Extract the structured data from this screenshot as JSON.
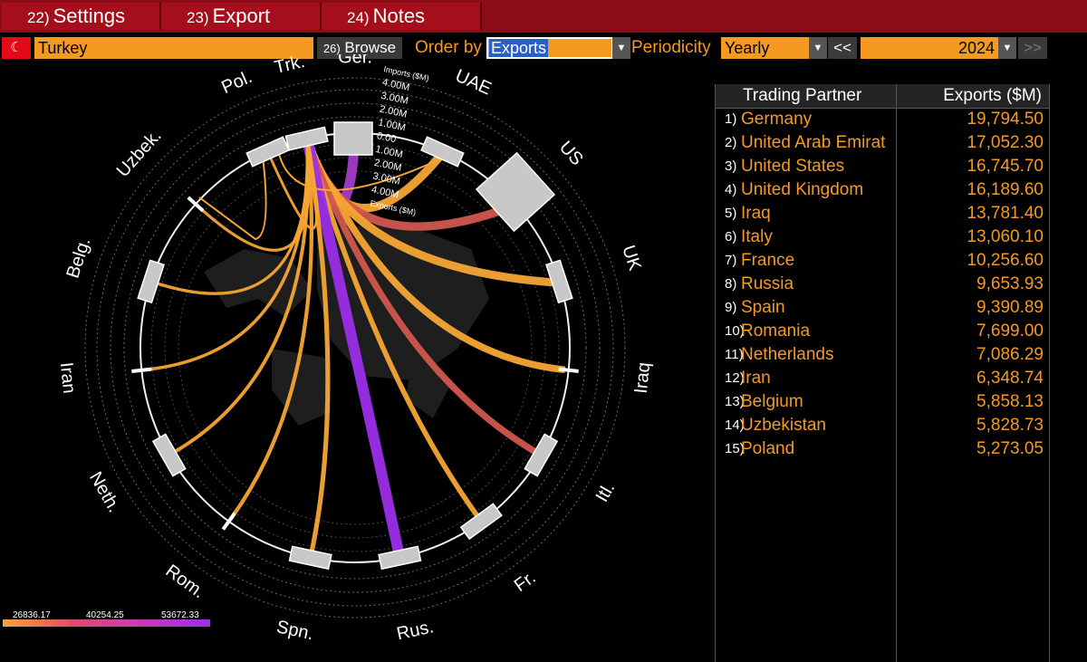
{
  "menu": [
    {
      "num": "22)",
      "label": "Settings"
    },
    {
      "num": "23)",
      "label": "Export"
    },
    {
      "num": "24)",
      "label": "Notes"
    }
  ],
  "toolbar": {
    "country": "Turkey",
    "browse_num": "26)",
    "browse_label": "Browse",
    "order_by_label": "Order by",
    "order_by_value": "Exports",
    "periodicity_label": "Periodicity",
    "periodicity_value": "Yearly",
    "prev_label": "<<",
    "year": "2024",
    "next_label": ">>"
  },
  "table": {
    "headers": [
      "Trading Partner",
      "Exports ($M)"
    ],
    "rows": [
      {
        "rank": "1)",
        "name": "Germany",
        "value": "19,794.50"
      },
      {
        "rank": "2)",
        "name": "United Arab Emirat",
        "value": "17,052.30"
      },
      {
        "rank": "3)",
        "name": "United States",
        "value": "16,745.70"
      },
      {
        "rank": "4)",
        "name": "United Kingdom",
        "value": "16,189.60"
      },
      {
        "rank": "5)",
        "name": "Iraq",
        "value": "13,781.40"
      },
      {
        "rank": "6)",
        "name": "Italy",
        "value": "13,060.10"
      },
      {
        "rank": "7)",
        "name": "France",
        "value": "10,256.60"
      },
      {
        "rank": "8)",
        "name": "Russia",
        "value": "9,653.93"
      },
      {
        "rank": "9)",
        "name": "Spain",
        "value": "9,390.89"
      },
      {
        "rank": "10)",
        "name": "Romania",
        "value": "7,699.00"
      },
      {
        "rank": "11)",
        "name": "Netherlands",
        "value": "7,086.29"
      },
      {
        "rank": "12)",
        "name": "Iran",
        "value": "6,348.74"
      },
      {
        "rank": "13)",
        "name": "Belgium",
        "value": "5,858.13"
      },
      {
        "rank": "14)",
        "name": "Uzbekistan",
        "value": "5,828.73"
      },
      {
        "rank": "15)",
        "name": "Poland",
        "value": "5,273.05"
      }
    ]
  },
  "chart": {
    "nodes": [
      {
        "label": "Ger.",
        "angle": 0,
        "box": "large"
      },
      {
        "label": "UAE",
        "angle": 24,
        "box": "small"
      },
      {
        "label": "US",
        "angle": 48,
        "box": "xlarge"
      },
      {
        "label": "UK",
        "angle": 72,
        "box": "small"
      },
      {
        "label": "Iraq",
        "angle": 96,
        "box": "tick"
      },
      {
        "label": "Itl.",
        "angle": 120,
        "box": "small"
      },
      {
        "label": "Fr.",
        "angle": 144,
        "box": "small"
      },
      {
        "label": "Rus.",
        "angle": 168,
        "box": "small"
      },
      {
        "label": "Spn.",
        "angle": 192,
        "box": "small"
      },
      {
        "label": "Rom.",
        "angle": 216,
        "box": "tick"
      },
      {
        "label": "Neth.",
        "angle": 240,
        "box": "small"
      },
      {
        "label": "Iran",
        "angle": 264,
        "box": "tick"
      },
      {
        "label": "Belg.",
        "angle": 288,
        "box": "small"
      },
      {
        "label": "Uzbek.",
        "angle": 312,
        "box": "tick"
      },
      {
        "label": "Pol.",
        "angle": 336,
        "box": "small"
      },
      {
        "label": "Trk.",
        "angle": 347,
        "box": "small"
      }
    ],
    "scale_labels": [
      "Imports ($M)",
      "4.00M",
      "3.00M",
      "2.00M",
      "1.00M",
      "0.00",
      "1.00M",
      "2.00M",
      "3.00M",
      "4.00M",
      "Exports ($M)"
    ],
    "legend_values": [
      "26836.17",
      "40254.25",
      "53672.33"
    ],
    "colors": {
      "low": "#f7a534",
      "mid": "#e0625a",
      "high": "#9b2ee8",
      "accent": "#f59a21",
      "menu": "#8c0c16"
    }
  },
  "chart_data": {
    "type": "chord",
    "source": "Trk.",
    "targets": [
      "Ger.",
      "UAE",
      "US",
      "UK",
      "Iraq",
      "Itl.",
      "Fr.",
      "Rus.",
      "Spn.",
      "Rom.",
      "Neth.",
      "Iran",
      "Belg.",
      "Uzbek.",
      "Pol."
    ],
    "exports": [
      19794.5,
      17052.3,
      16745.7,
      16189.6,
      13781.4,
      13060.1,
      10256.6,
      9653.93,
      9390.89,
      7699.0,
      7086.29,
      6348.74,
      5858.13,
      5828.73,
      5273.05
    ],
    "color_scale": [
      26836.17,
      40254.25,
      53672.33
    ]
  }
}
